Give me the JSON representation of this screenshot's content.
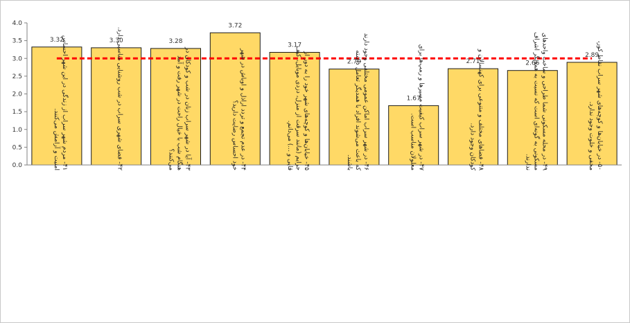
{
  "chart_data": {
    "type": "bar",
    "title": "",
    "xlabel": "",
    "ylabel": "",
    "ylim": [
      0,
      4
    ],
    "yticks": [
      "0.0",
      "0.5",
      "1.0",
      "1.5",
      "2.0",
      "2.5",
      "3.0",
      "3.5",
      "4.0"
    ],
    "grid": false,
    "legend": "none",
    "bar_color": "#FFD966",
    "bar_edge_color": "#1a1a1a",
    "reference_line": {
      "value": 3.0,
      "color": "#FF0000",
      "style": "dashed"
    },
    "categories": [
      "۴۱- مردم شهر سراب از زندگی در این شهر احساس امنیت و آرامش می‌کنند.",
      "۴۲- فضای شهری سراب در شب روشنایی مناسبی دارد.",
      "۴۳- آیا در شهر سراب زنان در شب و کودکان در هنگام شب با خیال راحت در شهر رفت و آمد می‌کنند؟",
      "۴۴- در عدم تجمع و تردد اراذل و اوباش در شهر خود احساس رضایت دارید؟",
      "۴۵- خیابان‌ها و کوچه‌های شهر خود را به دور از جرایم (مانند سرقت از منزل، دزدی موبایل، کیف قاپی و ...) می‌دانم.",
      "۴۶- در شهر سراب اماکن عمومی مختلفی وجود دارند که باعث می‌شوند افراد با همدیگر تعامل داشته باشند.",
      "۴۷- در شهر سراب کیفیت مسیرها و رمپ‌ها برای معلولان مناسب است.",
      "۴۸- فضاهای مختلف و متنوعی برای کهنسالان و کودکان وجود دارد.",
      "۴۹- در محله مسکونی شما طراحی و ساخت واحدهای مسکونی به گونه‌ای است که نسبت به همدیگر اشراف ندارند.",
      "۵۰- در خیابان‌ها و کوچه‌های شهر سراب نقاط کور، مخفی و خلوت وجود ندارد."
    ],
    "values": [
      3.32,
      3.3,
      3.28,
      3.72,
      3.17,
      2.7,
      1.67,
      2.71,
      2.66,
      2.89
    ],
    "value_labels": [
      "3.32",
      "3.30",
      "3.28",
      "3.72",
      "3.17",
      "2.70",
      "1.67",
      "2.71",
      "2.66",
      "2.89"
    ]
  }
}
